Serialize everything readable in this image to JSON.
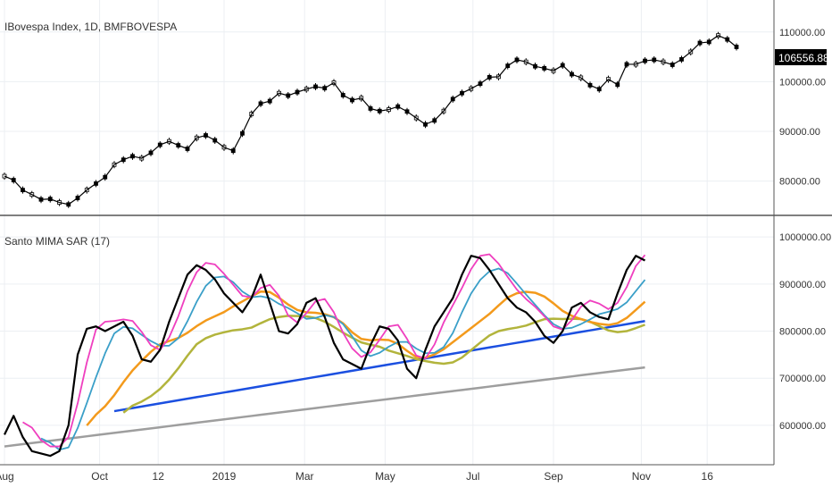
{
  "top_pane": {
    "title": "IBovespa Index, 1D, BMFBOVESPA",
    "price_ticks": [
      "110000.00",
      "100000.00",
      "90000.00",
      "80000.00"
    ],
    "last_price": "106556.88"
  },
  "bottom_pane": {
    "title": "Santo MIMA SAR (17)",
    "value_ticks": [
      "1000000.00",
      "900000.00",
      "800000.00",
      "700000.00",
      "600000.00"
    ]
  },
  "x_axis": {
    "ticks": [
      "Aug",
      "Oct",
      "12",
      "2019",
      "Mar",
      "May",
      "Jul",
      "Sep",
      "Nov",
      "16"
    ]
  },
  "colors": {
    "price": "#000000",
    "oscillator": "#000000",
    "magenta": "#ef3fbf",
    "teal": "#3a9fc8",
    "orange": "#f39a1c",
    "olive": "#b2b43c",
    "blue": "#1b4fe0",
    "gray": "#9e9e9e",
    "cyan_dots": "#39a8d6"
  },
  "chart_data": [
    {
      "type": "line",
      "title": "IBovespa Index, 1D, BMFBOVESPA",
      "x_ticks": [
        "Aug",
        "Oct",
        "12",
        "2019",
        "Mar",
        "May",
        "Jul",
        "Sep",
        "Nov",
        "16"
      ],
      "ylim": [
        74000,
        115000
      ],
      "y_ticks": [
        80000,
        90000,
        100000,
        110000
      ],
      "last_value": 106556.88,
      "series": [
        {
          "values": [
            81000,
            80200,
            78200,
            77300,
            76300,
            76400,
            75700,
            75300,
            76600,
            78200,
            79500,
            80800,
            83300,
            84300,
            85000,
            84600,
            85700,
            87300,
            88000,
            87200,
            86500,
            88700,
            89200,
            88200,
            86800,
            86100,
            89600,
            93500,
            95600,
            96100,
            97700,
            97200,
            97900,
            98500,
            99000,
            98700,
            99800,
            97300,
            96300,
            96700,
            94600,
            94100,
            94400,
            95000,
            94000,
            92700,
            91400,
            92200,
            94100,
            96500,
            97700,
            98600,
            99600,
            100900,
            101000,
            103200,
            104400,
            104000,
            103100,
            102700,
            102200,
            103300,
            101500,
            100800,
            99300,
            98500,
            100500,
            99400,
            103500,
            103500,
            104200,
            104400,
            104000,
            103400,
            104500,
            106000,
            107800,
            108000,
            109300,
            108500,
            107000
          ]
        }
      ]
    },
    {
      "type": "line",
      "title": "Santo MIMA SAR (17)",
      "x_ticks": [
        "Aug",
        "Oct",
        "12",
        "2019",
        "Mar",
        "May",
        "Jul",
        "Sep",
        "Nov",
        "16"
      ],
      "ylim": [
        520000,
        1025000
      ],
      "y_ticks": [
        600000,
        700000,
        800000,
        900000,
        1000000
      ],
      "series": [
        {
          "name": "",
          "values": [
            580000,
            620000,
            575000,
            545000,
            540000,
            535000,
            545000,
            600000,
            750000,
            805000,
            810000,
            800000,
            810000,
            820000,
            790000,
            740000,
            735000,
            760000,
            820000,
            870000,
            920000,
            940000,
            930000,
            910000,
            880000,
            860000,
            840000,
            870000,
            920000,
            860000,
            800000,
            795000,
            815000,
            860000,
            870000,
            830000,
            775000,
            740000,
            730000,
            720000,
            770000,
            810000,
            805000,
            780000,
            720000,
            700000,
            760000,
            810000,
            840000,
            870000,
            920000,
            960000,
            955000,
            930000,
            900000,
            870000,
            850000,
            840000,
            820000,
            790000,
            775000,
            800000,
            850000,
            860000,
            840000,
            830000,
            825000,
            880000,
            930000,
            960000,
            950000
          ]
        },
        {
          "name": "",
          "values": [
            null,
            null,
            null,
            null,
            null,
            null,
            null,
            null,
            null,
            null,
            null,
            null,
            null,
            null,
            null,
            null,
            null,
            null,
            null,
            null,
            null,
            null,
            null,
            null,
            null,
            null,
            null,
            null,
            null,
            null,
            null,
            null,
            null,
            null,
            null,
            null,
            null,
            null,
            null,
            null,
            null,
            null,
            null,
            null,
            null,
            null,
            null,
            null,
            null,
            null,
            null,
            null,
            null,
            null,
            null,
            null,
            null,
            null,
            null,
            null,
            null,
            null,
            null,
            null,
            null,
            null,
            null,
            null,
            null,
            null,
            null
          ]
        }
      ]
    }
  ]
}
